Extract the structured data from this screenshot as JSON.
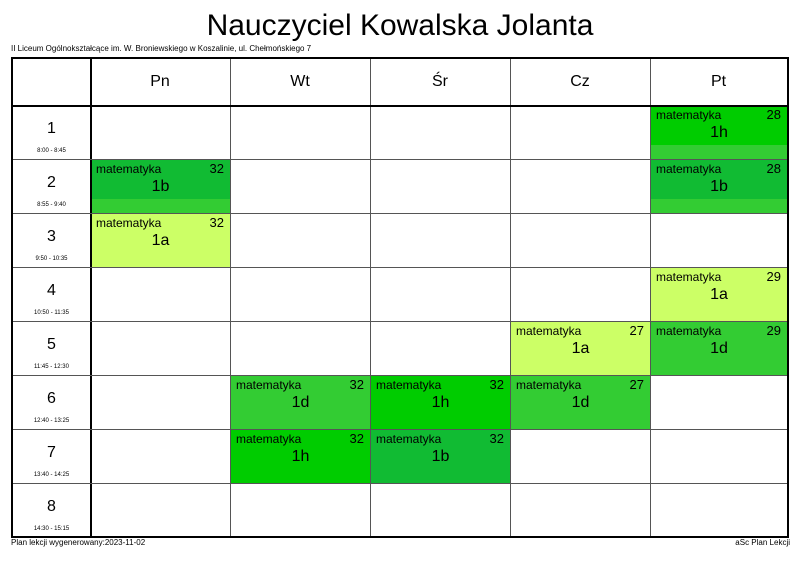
{
  "header": {
    "title": "Nauczyciel Kowalska Jolanta",
    "school": "II Liceum Ogólnokształcące im. W. Broniewskiego w Koszalinie, ul. Chełmońskiego 7"
  },
  "days": [
    "Pn",
    "Wt",
    "Śr",
    "Cz",
    "Pt"
  ],
  "periods": [
    {
      "num": "1",
      "time": "8:00 - 8:45"
    },
    {
      "num": "2",
      "time": "8:55 - 9:40"
    },
    {
      "num": "3",
      "time": "9:50 - 10:35"
    },
    {
      "num": "4",
      "time": "10:50 - 11:35"
    },
    {
      "num": "5",
      "time": "11:45 - 12:30"
    },
    {
      "num": "6",
      "time": "12:40 - 13:25"
    },
    {
      "num": "7",
      "time": "13:40 - 14:25"
    },
    {
      "num": "8",
      "time": "14:30 - 15:15"
    }
  ],
  "lessons": [
    {
      "day": 4,
      "period": 0,
      "subject": "matematyka",
      "room": "28",
      "class": "1h",
      "color": "#00cc00",
      "band": "#33cc33"
    },
    {
      "day": 0,
      "period": 1,
      "subject": "matematyka",
      "room": "32",
      "class": "1b",
      "color": "#11bb33",
      "band": "#33cc33"
    },
    {
      "day": 4,
      "period": 1,
      "subject": "matematyka",
      "room": "28",
      "class": "1b",
      "color": "#11bb33",
      "band": "#33cc33"
    },
    {
      "day": 0,
      "period": 2,
      "subject": "matematyka",
      "room": "32",
      "class": "1a",
      "color": "#ccff66",
      "band": null
    },
    {
      "day": 4,
      "period": 3,
      "subject": "matematyka",
      "room": "29",
      "class": "1a",
      "color": "#ccff66",
      "band": null
    },
    {
      "day": 3,
      "period": 4,
      "subject": "matematyka",
      "room": "27",
      "class": "1a",
      "color": "#ccff66",
      "band": null
    },
    {
      "day": 4,
      "period": 4,
      "subject": "matematyka",
      "room": "29",
      "class": "1d",
      "color": "#33cc33",
      "band": null
    },
    {
      "day": 1,
      "period": 5,
      "subject": "matematyka",
      "room": "32",
      "class": "1d",
      "color": "#33cc33",
      "band": null
    },
    {
      "day": 2,
      "period": 5,
      "subject": "matematyka",
      "room": "32",
      "class": "1h",
      "color": "#00cc00",
      "band": null
    },
    {
      "day": 3,
      "period": 5,
      "subject": "matematyka",
      "room": "27",
      "class": "1d",
      "color": "#33cc33",
      "band": null
    },
    {
      "day": 1,
      "period": 6,
      "subject": "matematyka",
      "room": "32",
      "class": "1h",
      "color": "#00cc00",
      "band": null
    },
    {
      "day": 2,
      "period": 6,
      "subject": "matematyka",
      "room": "32",
      "class": "1b",
      "color": "#11bb33",
      "band": null
    }
  ],
  "footer": {
    "generated": "Plan lekcji wygenerowany:2023-11-02",
    "brand": "aSc Plan Lekcji"
  }
}
